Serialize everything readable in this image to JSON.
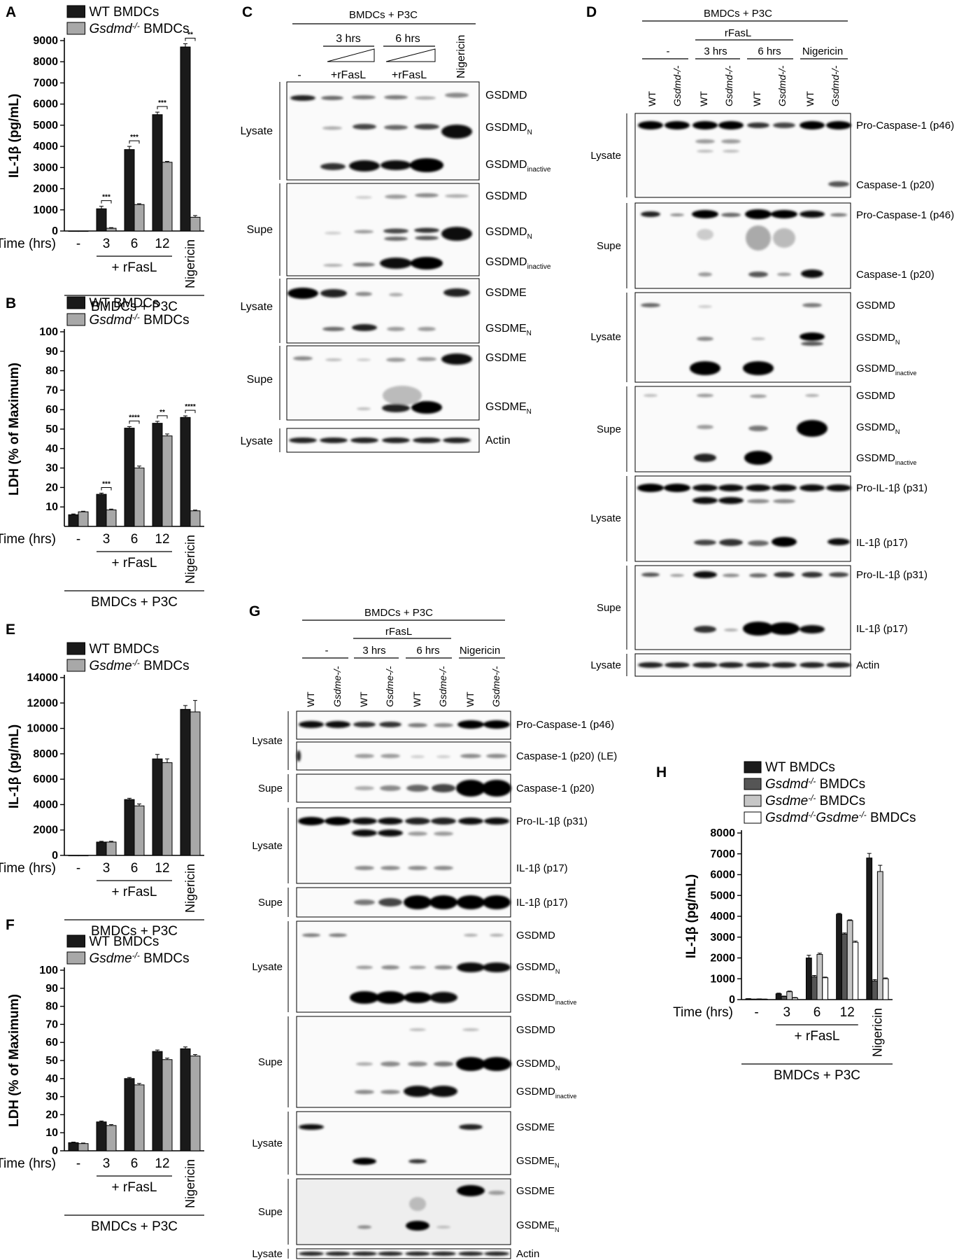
{
  "panel_letters": {
    "A": "A",
    "B": "B",
    "C": "C",
    "D": "D",
    "E": "E",
    "F": "F",
    "G": "G",
    "H": "H"
  },
  "chart_data": [
    {
      "id": "A",
      "type": "bar",
      "ylabel": "IL-1β (pg/mL)",
      "xlabel": "Time (hrs)",
      "ylim": [
        0,
        9000
      ],
      "yticks": [
        0,
        1000,
        2000,
        3000,
        4000,
        5000,
        6000,
        7000,
        8000,
        9000
      ],
      "categories": [
        "-",
        "3",
        "6",
        "12",
        "Nigericin"
      ],
      "group_label": "+ rFasL",
      "condition_label": "BMDCs + P3C",
      "series": [
        {
          "name": "WT BMDCs",
          "color": "#1a1a1a",
          "values": [
            0,
            1050,
            3850,
            5500,
            8700
          ],
          "errors": [
            0,
            120,
            150,
            120,
            150
          ]
        },
        {
          "name": "Gsdmd-/- BMDCs",
          "color": "#a8a8a8",
          "values": [
            0,
            130,
            1250,
            3250,
            650
          ],
          "errors": [
            0,
            30,
            40,
            40,
            80
          ]
        }
      ],
      "significance": [
        "",
        "***",
        "***",
        "***",
        "**"
      ],
      "legend": "top-left"
    },
    {
      "id": "B",
      "type": "bar",
      "ylabel": "LDH (% of Maximum)",
      "xlabel": "Time (hrs)",
      "ylim": [
        0,
        100
      ],
      "yticks": [
        10,
        20,
        30,
        40,
        50,
        60,
        70,
        80,
        90,
        100
      ],
      "categories": [
        "-",
        "3",
        "6",
        "12",
        "Nigericin"
      ],
      "group_label": "+ rFasL",
      "condition_label": "BMDCs + P3C",
      "series": [
        {
          "name": "WT BMDCs",
          "color": "#1a1a1a",
          "values": [
            6,
            16.5,
            50.5,
            53,
            56
          ],
          "errors": [
            0.4,
            0.6,
            0.8,
            1.0,
            0.8
          ]
        },
        {
          "name": "Gsdmd-/- BMDCs",
          "color": "#a8a8a8",
          "values": [
            7.5,
            8.5,
            30,
            46.5,
            8
          ],
          "errors": [
            0.3,
            0.4,
            1.0,
            1.0,
            0.4
          ]
        }
      ],
      "significance": [
        "",
        "***",
        "****",
        "**",
        "****"
      ],
      "legend": "top-left"
    },
    {
      "id": "E",
      "type": "bar",
      "ylabel": "IL-1β (pg/mL)",
      "xlabel": "Time (hrs)",
      "ylim": [
        0,
        14000
      ],
      "yticks": [
        0,
        2000,
        4000,
        6000,
        8000,
        10000,
        12000,
        14000
      ],
      "categories": [
        "-",
        "3",
        "6",
        "12",
        "Nigericin"
      ],
      "group_label": "+ rFasL",
      "condition_label": "BMDCs + P3C",
      "series": [
        {
          "name": "WT BMDCs",
          "color": "#1a1a1a",
          "values": [
            0,
            1050,
            4400,
            7600,
            11500
          ],
          "errors": [
            0,
            60,
            100,
            350,
            300
          ]
        },
        {
          "name": "Gsdme-/- BMDCs",
          "color": "#a8a8a8",
          "values": [
            0,
            1050,
            3900,
            7300,
            11300
          ],
          "errors": [
            0,
            60,
            150,
            300,
            900
          ]
        }
      ],
      "significance": [
        "",
        "",
        "",
        "",
        ""
      ],
      "legend": "top-left"
    },
    {
      "id": "F",
      "type": "bar",
      "ylabel": "LDH (% of Maximum)",
      "xlabel": "Time (hrs)",
      "ylim": [
        0,
        100
      ],
      "yticks": [
        0,
        10,
        20,
        30,
        40,
        50,
        60,
        70,
        80,
        90,
        100
      ],
      "categories": [
        "-",
        "3",
        "6",
        "12",
        "Nigericin"
      ],
      "group_label": "+ rFasL",
      "condition_label": "BMDCs + P3C",
      "series": [
        {
          "name": "WT BMDCs",
          "color": "#1a1a1a",
          "values": [
            4.5,
            16,
            40,
            55,
            56.5
          ],
          "errors": [
            0.3,
            0.5,
            0.6,
            0.8,
            1.0
          ]
        },
        {
          "name": "Gsdme-/- BMDCs",
          "color": "#a8a8a8",
          "values": [
            4,
            14,
            36.5,
            50.5,
            52.5
          ],
          "errors": [
            0.3,
            0.5,
            0.8,
            0.8,
            0.8
          ]
        }
      ],
      "significance": [
        "",
        "",
        "",
        "",
        ""
      ],
      "legend": "top-left"
    },
    {
      "id": "H",
      "type": "bar",
      "ylabel": "IL-1β (pg/mL)",
      "xlabel": "Time (hrs)",
      "ylim": [
        0,
        8000
      ],
      "yticks": [
        0,
        1000,
        2000,
        3000,
        4000,
        5000,
        6000,
        7000,
        8000
      ],
      "categories": [
        "-",
        "3",
        "6",
        "12",
        "Nigericin"
      ],
      "group_label": "+ rFasL",
      "condition_label": "BMDCs + P3C",
      "series": [
        {
          "name": "WT BMDCs",
          "color": "#1a1a1a",
          "values": [
            40,
            280,
            2000,
            4100,
            6800
          ],
          "errors": [
            5,
            30,
            130,
            40,
            220
          ]
        },
        {
          "name": "Gsdmd-/- BMDCs",
          "color": "#555555",
          "values": [
            20,
            150,
            1100,
            3150,
            900
          ],
          "errors": [
            5,
            20,
            60,
            50,
            60
          ]
        },
        {
          "name": "Gsdme-/- BMDCs",
          "color": "#c6c6c6",
          "values": [
            30,
            380,
            2170,
            3800,
            6150
          ],
          "errors": [
            5,
            30,
            60,
            30,
            300
          ]
        },
        {
          "name": "Gsdmd-/-Gsdme-/- BMDCs",
          "color": "#ffffff",
          "values": [
            20,
            80,
            1050,
            2750,
            1000
          ],
          "errors": [
            5,
            20,
            30,
            60,
            40
          ]
        }
      ],
      "significance": [
        "",
        "",
        "",
        "",
        ""
      ],
      "legend": "top-left"
    }
  ],
  "blots": {
    "C": {
      "condition": "BMDCs + P3C",
      "lanes": [
        "-",
        "+rFasL",
        "+rFasL",
        "Nigericin"
      ],
      "time_headers": [
        "3 hrs",
        "6 hrs"
      ],
      "sample_labels": [
        "Lysate",
        "Supe",
        "Lysate",
        "Supe",
        "Lysate"
      ],
      "band_labels": [
        [
          "GSDMD",
          "GSDMD",
          "N",
          "GSDMD",
          "inactive"
        ],
        [
          "GSDMD",
          "GSDMD",
          "N",
          "GSDMD",
          "inactive"
        ],
        [
          "GSDME",
          "GSDME",
          "N"
        ],
        [
          "GSDME",
          "GSDME",
          "N"
        ],
        [
          "Actin"
        ]
      ]
    },
    "D": {
      "condition": "BMDCs + P3C",
      "treatment": "rFasL",
      "groups": [
        "-",
        "3 hrs",
        "6 hrs",
        "Nigericin"
      ],
      "lanes": [
        "WT",
        "Gsdmd-/-",
        "WT",
        "Gsdmd-/-",
        "WT",
        "Gsdmd-/-",
        "WT",
        "Gsdmd-/-"
      ],
      "sample_labels": [
        "Lysate",
        "Supe",
        "Lysate",
        "Supe",
        "Lysate",
        "Supe",
        "Lysate"
      ],
      "band_labels": [
        [
          "Pro-Caspase-1 (p46)",
          "Caspase-1 (p20)"
        ],
        [
          "Pro-Caspase-1 (p46)",
          "Caspase-1 (p20)"
        ],
        [
          "GSDMD",
          "GSDMD",
          "N",
          "GSDMD",
          "inactive"
        ],
        [
          "GSDMD",
          "GSDMD",
          "N",
          "GSDMD",
          "inactive"
        ],
        [
          "Pro-IL-1β (p31)",
          "IL-1β (p17)"
        ],
        [
          "Pro-IL-1β (p31)",
          "IL-1β (p17)"
        ],
        [
          "Actin"
        ]
      ]
    },
    "G": {
      "condition": "BMDCs + P3C",
      "treatment": "rFasL",
      "groups": [
        "-",
        "3 hrs",
        "6 hrs",
        "Nigericin"
      ],
      "lanes": [
        "WT",
        "Gsdme-/-",
        "WT",
        "Gsdme-/-",
        "WT",
        "Gsdme-/-",
        "WT",
        "Gsdme-/-"
      ],
      "sample_labels": [
        "Lysate",
        "Supe",
        "Lysate",
        "Supe",
        "Lysate",
        "Supe",
        "Lysate",
        "Supe",
        "Lysate"
      ],
      "band_labels": {
        "procasp": "Pro-Caspase-1 (p46)",
        "casp_le": "Caspase-1 (p20) (LE)",
        "casp": "Caspase-1 (p20)",
        "proil": "Pro-IL-1β (p31)",
        "il": "IL-1β (p17)",
        "gsdmd": "GSDMD",
        "gsdme": "GSDME",
        "actin": "Actin",
        "sub_n": "N",
        "sub_inactive": "inactive"
      }
    }
  }
}
